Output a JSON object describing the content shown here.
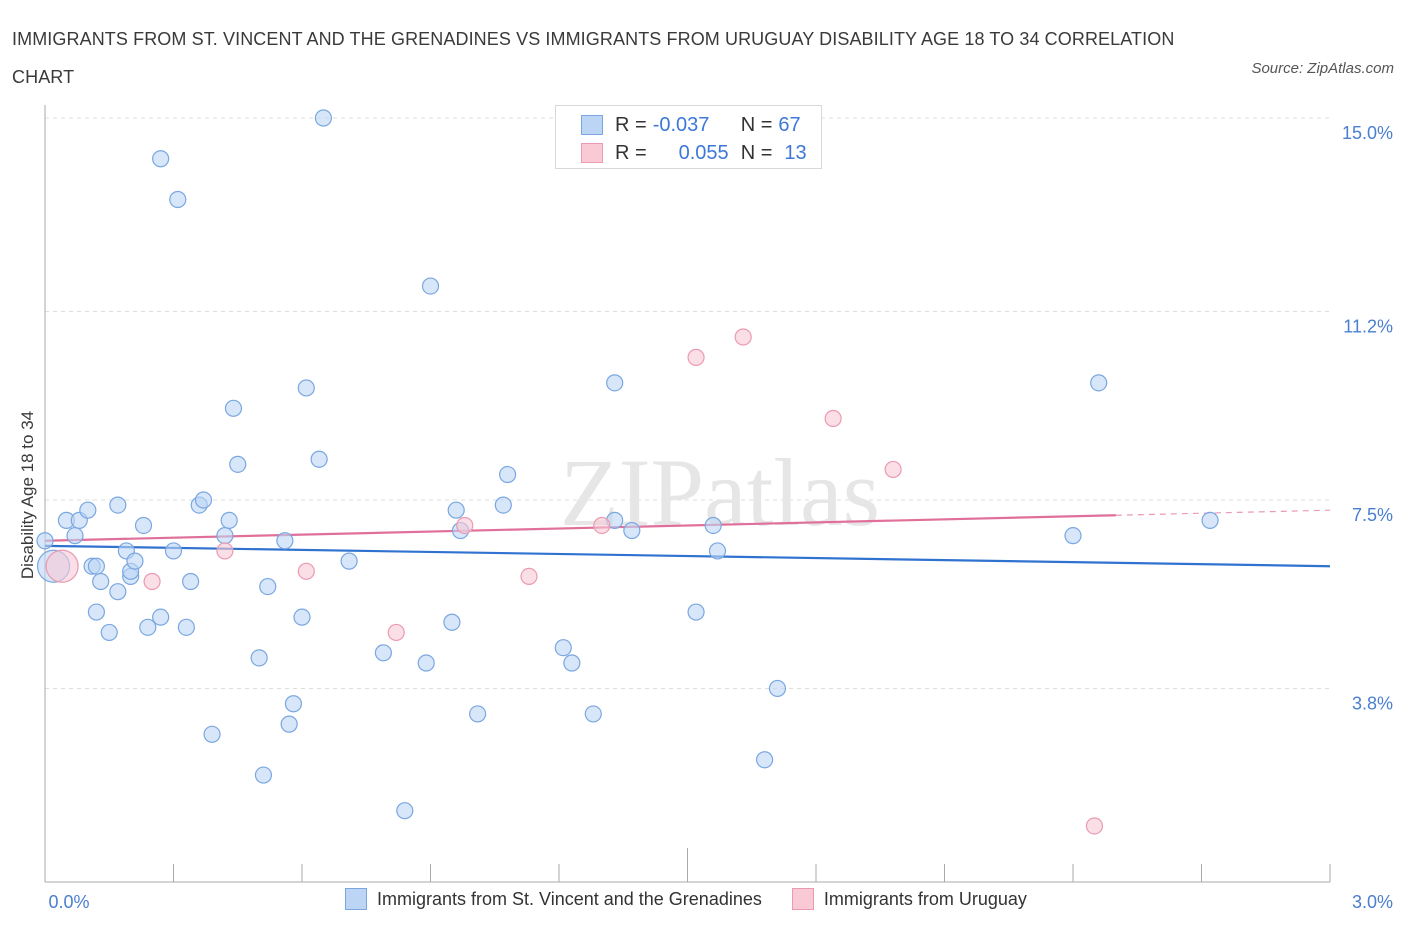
{
  "title": "IMMIGRANTS FROM ST. VINCENT AND THE GRENADINES VS IMMIGRANTS FROM URUGUAY DISABILITY AGE 18 TO 34 CORRELATION CHART",
  "source": "Source: ZipAtlas.com",
  "watermark": "ZIPatlas",
  "legend": {
    "r_label": "R =",
    "n_label": "N =",
    "rows": [
      {
        "r": "-0.037",
        "n": "67"
      },
      {
        "r": "0.055",
        "n": "13"
      }
    ]
  },
  "colors": {
    "blue_fill": "#bcd5f5",
    "blue_stroke": "#7aa7e0",
    "blue_line": "#2f72d0",
    "pink_fill": "#f9c9d6",
    "pink_stroke": "#ea9ab1",
    "pink_line": "#e0709a",
    "tick_text": "#4a7fd0",
    "grid": "#dddddd"
  },
  "chart_data": {
    "type": "scatter",
    "xlabel": "",
    "ylabel": "Disability Age 18 to 34",
    "xlim": [
      0,
      3.0
    ],
    "ylim": [
      0,
      15.0
    ],
    "x_tick_labels": [
      "0.0%",
      "3.0%"
    ],
    "y_ticks": [
      3.8,
      7.5,
      11.2,
      15.0
    ],
    "y_tick_labels": [
      "3.8%",
      "7.5%",
      "11.2%",
      "15.0%"
    ],
    "grid": "horizontal dashed",
    "legend_position": "bottom",
    "series": [
      {
        "name": "Immigrants from St. Vincent and the Grenadines",
        "color": "#7aa7e0",
        "points": [
          [
            0.0,
            6.7
          ],
          [
            0.05,
            7.1
          ],
          [
            0.07,
            6.8
          ],
          [
            0.08,
            7.1
          ],
          [
            0.1,
            7.3
          ],
          [
            0.11,
            6.2
          ],
          [
            0.12,
            6.2
          ],
          [
            0.13,
            5.9
          ],
          [
            0.12,
            5.3
          ],
          [
            0.15,
            4.9
          ],
          [
            0.17,
            7.4
          ],
          [
            0.17,
            5.7
          ],
          [
            0.19,
            6.5
          ],
          [
            0.2,
            6.0
          ],
          [
            0.2,
            6.1
          ],
          [
            0.21,
            6.3
          ],
          [
            0.23,
            7.0
          ],
          [
            0.24,
            5.0
          ],
          [
            0.27,
            5.2
          ],
          [
            0.27,
            14.2
          ],
          [
            0.3,
            6.5
          ],
          [
            0.31,
            13.4
          ],
          [
            0.33,
            5.0
          ],
          [
            0.34,
            5.9
          ],
          [
            0.36,
            7.4
          ],
          [
            0.37,
            7.5
          ],
          [
            0.39,
            2.9
          ],
          [
            0.42,
            6.8
          ],
          [
            0.43,
            7.1
          ],
          [
            0.44,
            9.3
          ],
          [
            0.45,
            8.2
          ],
          [
            0.5,
            4.4
          ],
          [
            0.51,
            2.1
          ],
          [
            0.52,
            5.8
          ],
          [
            0.56,
            6.7
          ],
          [
            0.57,
            3.1
          ],
          [
            0.58,
            3.5
          ],
          [
            0.6,
            5.2
          ],
          [
            0.61,
            9.7
          ],
          [
            0.64,
            8.3
          ],
          [
            0.65,
            15.0
          ],
          [
            0.71,
            6.3
          ],
          [
            0.79,
            4.5
          ],
          [
            0.84,
            1.4
          ],
          [
            0.89,
            4.3
          ],
          [
            0.9,
            11.7
          ],
          [
            0.95,
            5.1
          ],
          [
            0.96,
            7.3
          ],
          [
            0.97,
            6.9
          ],
          [
            1.01,
            3.3
          ],
          [
            1.07,
            7.4
          ],
          [
            1.08,
            8.0
          ],
          [
            1.21,
            4.6
          ],
          [
            1.23,
            4.3
          ],
          [
            1.28,
            3.3
          ],
          [
            1.33,
            9.8
          ],
          [
            1.33,
            7.1
          ],
          [
            1.37,
            6.9
          ],
          [
            1.52,
            5.3
          ],
          [
            1.56,
            7.0
          ],
          [
            1.57,
            6.5
          ],
          [
            1.68,
            2.4
          ],
          [
            1.71,
            3.8
          ],
          [
            2.4,
            6.8
          ],
          [
            2.46,
            9.8
          ],
          [
            2.72,
            7.1
          ],
          [
            0.02,
            6.2
          ]
        ]
      },
      {
        "name": "Immigrants from Uruguay",
        "color": "#ea9ab1",
        "points": [
          [
            0.04,
            6.2
          ],
          [
            0.25,
            5.9
          ],
          [
            0.42,
            6.5
          ],
          [
            0.61,
            6.1
          ],
          [
            0.82,
            4.9
          ],
          [
            0.98,
            7.0
          ],
          [
            1.13,
            6.0
          ],
          [
            1.3,
            7.0
          ],
          [
            1.52,
            10.3
          ],
          [
            1.63,
            10.7
          ],
          [
            1.84,
            9.1
          ],
          [
            1.98,
            8.1
          ],
          [
            2.45,
            1.1
          ]
        ]
      }
    ],
    "trend_lines": [
      {
        "series": "Immigrants from St. Vincent and the Grenadines",
        "x": [
          0.0,
          3.0
        ],
        "y": [
          6.6,
          6.2
        ],
        "r": -0.037,
        "n": 67
      },
      {
        "series": "Immigrants from Uruguay",
        "x": [
          0.0,
          2.5
        ],
        "y": [
          6.7,
          7.2
        ],
        "dashed_extension_to": 3.0,
        "r": 0.055,
        "n": 13
      }
    ]
  }
}
